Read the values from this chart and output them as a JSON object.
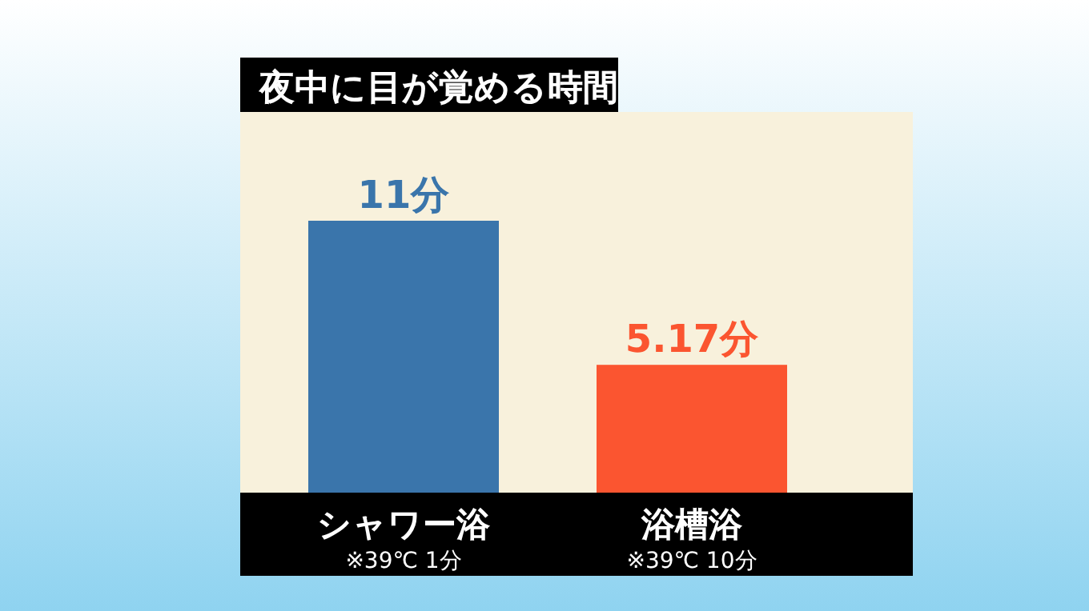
{
  "chart_data": {
    "type": "bar",
    "title": "夜中に目が覚める時間",
    "categories": [
      "シャワー浴",
      "浴槽浴"
    ],
    "values": [
      11,
      5.17
    ],
    "colors": [
      "#3a75ab",
      "#fb5530"
    ],
    "value_labels": [
      "11分",
      "5.17分"
    ],
    "annotations": [
      "※39℃ 1分",
      "※39℃ 10分"
    ]
  }
}
